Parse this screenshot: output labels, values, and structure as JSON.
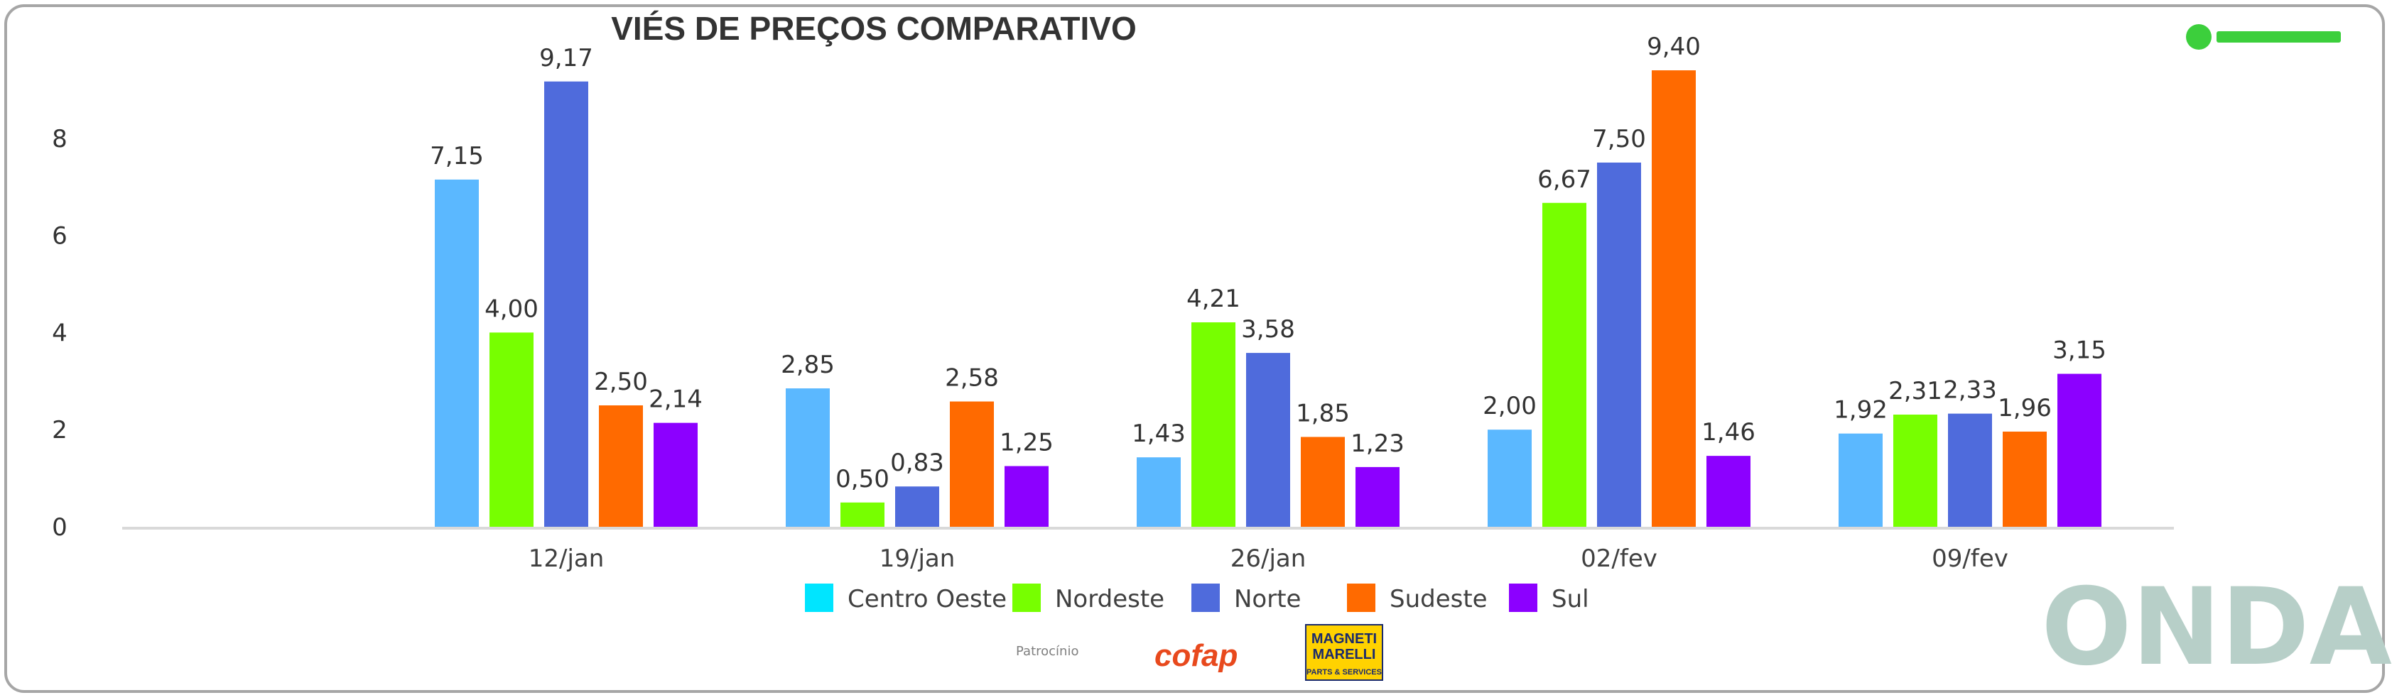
{
  "header": {
    "title": "VIÉS DE PREÇOS COMPARATIVO"
  },
  "footer": {
    "patrocinio_label": "Patrocínio",
    "sponsor_1": "cofap",
    "sponsor_2_line1": "MAGNETI",
    "sponsor_2_line2": "MARELLI",
    "sponsor_2_line3": "PARTS & SERVICES",
    "brand": "ONDA"
  },
  "colors": {
    "centro_oeste": "#5bb8ff",
    "nordeste": "#77ff00",
    "norte": "#4f6bdc",
    "sudeste": "#ff6a00",
    "sul": "#8c00ff",
    "legend_centro_oeste": "#00e5ff",
    "brand_green": "#3ccf3c"
  },
  "chart_data": {
    "type": "bar",
    "title": "VIÉS DE PREÇOS COMPARATIVO",
    "categories": [
      "12/jan",
      "19/jan",
      "26/jan",
      "02/fev",
      "09/fev"
    ],
    "ylim": [
      0,
      9.5
    ],
    "yticks": [
      "0",
      "2",
      "4",
      "6",
      "8"
    ],
    "ytick_values": [
      0,
      2,
      4,
      6,
      8
    ],
    "legend_position": "bottom",
    "grid": false,
    "series": [
      {
        "name": "Centro Oeste",
        "values": [
          7.15,
          2.85,
          1.43,
          2.0,
          1.92
        ],
        "labels": [
          "7,15",
          "2,85",
          "1,43",
          "2,00",
          "1,92"
        ]
      },
      {
        "name": "Nordeste",
        "values": [
          4.0,
          0.5,
          4.21,
          6.67,
          2.31
        ],
        "labels": [
          "4,00",
          "0,50",
          "4,21",
          "6,67",
          "2,31"
        ]
      },
      {
        "name": "Norte",
        "values": [
          9.17,
          0.83,
          3.58,
          7.5,
          2.33
        ],
        "labels": [
          "9,17",
          "0,83",
          "3,58",
          "7,50",
          "2,33"
        ]
      },
      {
        "name": "Sudeste",
        "values": [
          2.5,
          2.58,
          1.85,
          9.4,
          1.96
        ],
        "labels": [
          "2,50",
          "2,58",
          "1,85",
          "9,40",
          "1,96"
        ]
      },
      {
        "name": "Sul",
        "values": [
          2.14,
          1.25,
          1.23,
          1.46,
          3.15
        ],
        "labels": [
          "2,14",
          "1,25",
          "1,23",
          "1,46",
          "3,15"
        ]
      }
    ]
  }
}
